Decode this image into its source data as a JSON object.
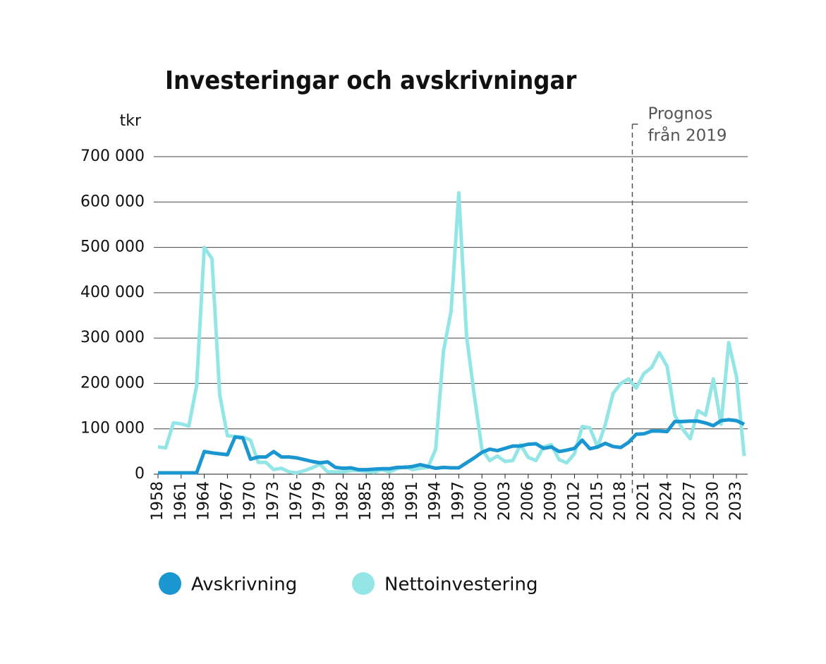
{
  "chart_data": {
    "type": "line",
    "title": "Investeringar och avskrivningar",
    "y_label": "tkr",
    "x": [
      1958,
      1959,
      1960,
      1961,
      1962,
      1963,
      1964,
      1965,
      1966,
      1967,
      1968,
      1969,
      1970,
      1971,
      1972,
      1973,
      1974,
      1975,
      1976,
      1977,
      1978,
      1979,
      1980,
      1981,
      1982,
      1983,
      1984,
      1985,
      1986,
      1987,
      1988,
      1989,
      1990,
      1991,
      1992,
      1993,
      1994,
      1995,
      1996,
      1997,
      1998,
      1999,
      2000,
      2001,
      2002,
      2003,
      2004,
      2005,
      2006,
      2007,
      2008,
      2009,
      2010,
      2011,
      2012,
      2013,
      2014,
      2015,
      2016,
      2017,
      2018,
      2019,
      2020,
      2021,
      2022,
      2023,
      2024,
      2025,
      2026,
      2027,
      2028,
      2029,
      2030,
      2031,
      2032,
      2033,
      2034
    ],
    "series": [
      {
        "name": "Avskrivning",
        "color": "#1a96d0",
        "values": [
          3000,
          3000,
          3000,
          3000,
          3000,
          3000,
          50000,
          47000,
          45000,
          43000,
          82000,
          80000,
          33000,
          38000,
          38000,
          50000,
          38000,
          38000,
          36000,
          32000,
          28000,
          25000,
          27000,
          15000,
          13000,
          14000,
          10000,
          10000,
          11000,
          12000,
          12000,
          15000,
          15000,
          17000,
          21000,
          17000,
          13000,
          15000,
          14000,
          14000,
          25000,
          36000,
          48000,
          55000,
          52000,
          57000,
          62000,
          62000,
          66000,
          67000,
          57000,
          60000,
          50000,
          53000,
          57000,
          75000,
          56000,
          60000,
          68000,
          61000,
          59000,
          70000,
          88000,
          89000,
          95000,
          95000,
          94000,
          116000,
          116000,
          117000,
          117000,
          113000,
          107000,
          118000,
          120000,
          118000,
          110000
        ]
      },
      {
        "name": "Nettoinvestering",
        "color": "#94e6e6",
        "values": [
          60000,
          58000,
          113000,
          111000,
          106000,
          195000,
          500000,
          475000,
          175000,
          85000,
          83000,
          82000,
          75000,
          26000,
          26000,
          10000,
          13000,
          5000,
          3000,
          8000,
          14000,
          22000,
          5000,
          5000,
          5000,
          8000,
          8000,
          6000,
          4000,
          10000,
          5000,
          12000,
          17000,
          10000,
          13000,
          15000,
          55000,
          270000,
          360000,
          620000,
          305000,
          175000,
          55000,
          30000,
          40000,
          28000,
          30000,
          65000,
          37000,
          30000,
          60000,
          65000,
          32000,
          25000,
          45000,
          105000,
          102000,
          60000,
          110000,
          178000,
          200000,
          210000,
          190000,
          222000,
          235000,
          268000,
          238000,
          130000,
          100000,
          78000,
          140000,
          130000,
          210000,
          110000,
          290000,
          215000,
          40000
        ]
      }
    ],
    "xlim": [
      1958,
      2034
    ],
    "xticks": [
      1958,
      1961,
      1964,
      1967,
      1970,
      1973,
      1976,
      1979,
      1982,
      1985,
      1988,
      1991,
      1994,
      1997,
      2000,
      2003,
      2006,
      2009,
      2012,
      2015,
      2018,
      2021,
      2024,
      2027,
      2030,
      2033
    ],
    "ylim": [
      0,
      700000
    ],
    "yticks": [
      0,
      {
        "value": 100000,
        "label": "100 000"
      },
      {
        "value": 200000,
        "label": "200 000"
      },
      {
        "value": 300000,
        "label": "300 000"
      },
      {
        "value": 400000,
        "label": "400 000"
      },
      {
        "value": 500000,
        "label": "500 000"
      },
      {
        "value": 600000,
        "label": "600 000"
      },
      {
        "value": 700000,
        "label": "700 000"
      }
    ],
    "grid": true,
    "annotation": {
      "lines": [
        "Prognos",
        "från 2019"
      ],
      "x": 2019.5
    }
  }
}
